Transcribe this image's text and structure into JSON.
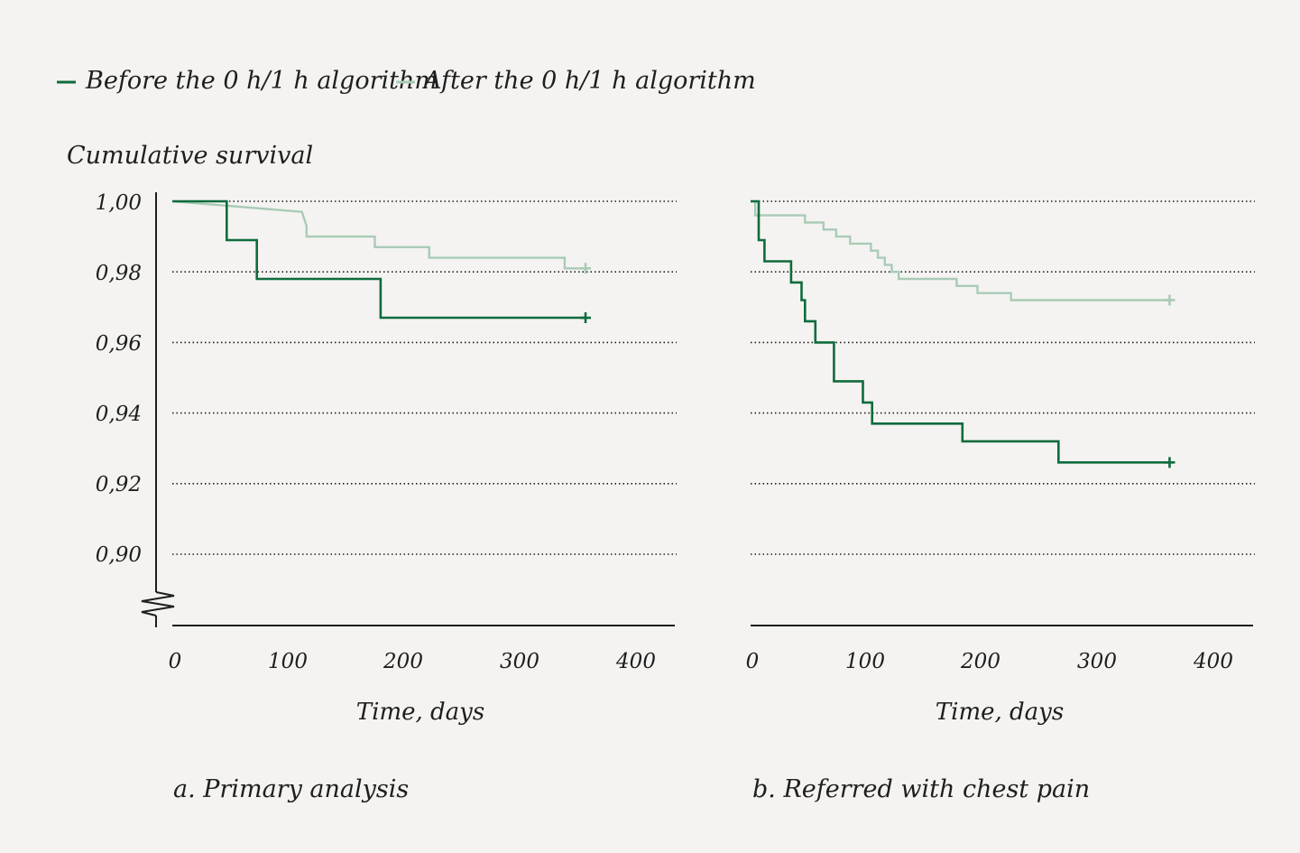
{
  "legend": {
    "before_label": "Before the 0 h/1 h algorithm",
    "after_label": "After the 0 h/1 h algorithm"
  },
  "colors": {
    "before": "#0f6b3c",
    "after": "#a9cbb6",
    "axis": "#1e1e1e",
    "background": "#f4f3f1"
  },
  "chart_data": [
    {
      "type": "line",
      "step": true,
      "caption": "a. Primary analysis",
      "ylabel": "Cumulative survival",
      "xlabel": "Time, days",
      "xlim": [
        0,
        430
      ],
      "ylim": [
        0.88,
        1.0
      ],
      "y_axis_break": true,
      "grid": "horizontal dotted",
      "xticks": [
        "0",
        "100",
        "200",
        "300",
        "400"
      ],
      "yticks": [
        "1,00",
        "0,98",
        "0,96",
        "0,94",
        "0,92",
        "0,90"
      ],
      "ytick_values": [
        1.0,
        0.98,
        0.96,
        0.94,
        0.92,
        0.9
      ],
      "series": [
        {
          "name": "Before the 0 h/1 h algorithm",
          "key": "before",
          "x": [
            0,
            47,
            47,
            73,
            73,
            180,
            180,
            357
          ],
          "y": [
            1.0,
            1.0,
            0.989,
            0.989,
            0.978,
            0.978,
            0.967,
            0.967
          ],
          "censor": [
            357,
            0.967
          ]
        },
        {
          "name": "After the 0 h/1 h algorithm",
          "key": "after",
          "x": [
            0,
            112,
            112,
            116,
            116,
            175,
            175,
            222,
            222,
            339,
            339,
            357
          ],
          "y": [
            1.0,
            0.997,
            0.997,
            0.993,
            0.99,
            0.99,
            0.987,
            0.987,
            0.984,
            0.984,
            0.981,
            0.981
          ],
          "censor": [
            357,
            0.981
          ]
        }
      ]
    },
    {
      "type": "line",
      "step": true,
      "caption": "b. Referred with chest pain",
      "ylabel": "",
      "xlabel": "Time, days",
      "xlim": [
        0,
        430
      ],
      "ylim": [
        0.88,
        1.0
      ],
      "grid": "horizontal dotted",
      "xticks": [
        "0",
        "100",
        "200",
        "300",
        "400"
      ],
      "series": [
        {
          "name": "Before the 0 h/1 h algorithm",
          "key": "before",
          "x": [
            0,
            7,
            7,
            12,
            12,
            35,
            35,
            44,
            44,
            47,
            47,
            56,
            56,
            72,
            72,
            97,
            97,
            105,
            105,
            183,
            183,
            266,
            266,
            362
          ],
          "y": [
            1.0,
            1.0,
            0.989,
            0.989,
            0.983,
            0.983,
            0.977,
            0.977,
            0.972,
            0.972,
            0.966,
            0.966,
            0.96,
            0.96,
            0.949,
            0.949,
            0.943,
            0.943,
            0.937,
            0.937,
            0.932,
            0.932,
            0.926,
            0.926
          ],
          "censor": [
            362,
            0.926
          ]
        },
        {
          "name": "After the 0 h/1 h algorithm",
          "key": "after",
          "x": [
            0,
            4,
            4,
            47,
            47,
            63,
            63,
            74,
            74,
            86,
            86,
            104,
            104,
            110,
            110,
            116,
            116,
            122,
            122,
            128,
            128,
            178,
            178,
            196,
            196,
            225,
            225,
            345,
            345,
            362
          ],
          "y": [
            1.0,
            1.0,
            0.996,
            0.996,
            0.994,
            0.994,
            0.992,
            0.992,
            0.99,
            0.99,
            0.988,
            0.988,
            0.986,
            0.986,
            0.984,
            0.984,
            0.982,
            0.982,
            0.98,
            0.98,
            0.978,
            0.978,
            0.976,
            0.976,
            0.974,
            0.974,
            0.972,
            0.972,
            0.972,
            0.972
          ],
          "censor": [
            362,
            0.972
          ]
        }
      ]
    }
  ]
}
